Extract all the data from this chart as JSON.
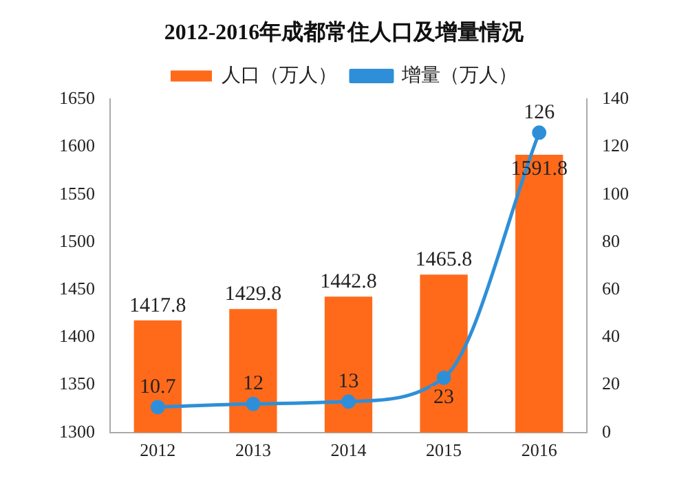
{
  "chart_data": {
    "type": "bar",
    "title": "2012-2016年成都常住人口及增量情况",
    "categories": [
      "2012",
      "2013",
      "2014",
      "2015",
      "2016"
    ],
    "series": [
      {
        "name": "人口（万人）",
        "color": "#ff6a1a",
        "values": [
          1417.8,
          1429.8,
          1442.8,
          1465.8,
          1591.8
        ]
      },
      {
        "name": "增量（万人）",
        "type": "line",
        "axis": "y2",
        "color": "#2e8fd8",
        "values": [
          10.7,
          12,
          13,
          23,
          126
        ]
      }
    ],
    "ylim": [
      1300,
      1650
    ],
    "yticks": [
      1300,
      1350,
      1400,
      1450,
      1500,
      1550,
      1600,
      1650
    ],
    "y2lim": [
      0,
      140
    ],
    "y2ticks": [
      0,
      20,
      40,
      60,
      80,
      100,
      120,
      140
    ],
    "grid": false,
    "legend": "top",
    "marker": "circle",
    "data_labels": true
  }
}
